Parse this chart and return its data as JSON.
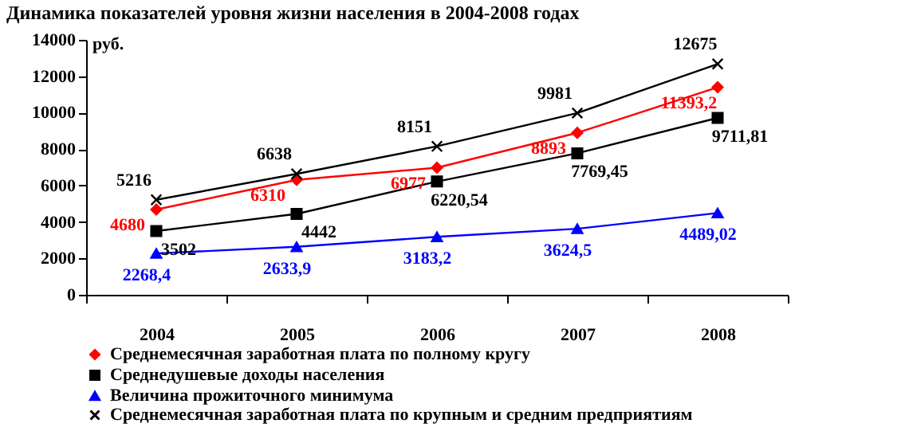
{
  "chart_data": {
    "type": "line",
    "title": "Динамика показателей уровня жизни населения в 2004-2008 годах",
    "ylabel": "руб.",
    "categories": [
      "2004",
      "2005",
      "2006",
      "2007",
      "2008"
    ],
    "series": [
      {
        "name": "Среднемесячная заработная плата по полному кругу",
        "color": "#ff0000",
        "marker": "diamond",
        "values": [
          4680,
          6310,
          6977,
          8893,
          11393.2
        ],
        "value_labels": [
          "4680",
          "6310",
          "6977",
          "8893",
          "11393,2"
        ]
      },
      {
        "name": "Среднедушевые доходы населения",
        "color": "#000000",
        "marker": "square",
        "values": [
          3502,
          4442,
          6220.54,
          7769.45,
          9711.81
        ],
        "value_labels": [
          "3502",
          "4442",
          "6220,54",
          "7769,45",
          "9711,81"
        ]
      },
      {
        "name": "Величина  прожиточного минимума",
        "color": "#0000ff",
        "marker": "triangle",
        "values": [
          2268.4,
          2633.9,
          3183.2,
          3624.5,
          4489.02
        ],
        "value_labels": [
          "2268,4",
          "2633,9",
          "3183,2",
          "3624,5",
          "4489,02"
        ]
      },
      {
        "name": "Среднемесячная заработная плата по крупным и средним предприятиям",
        "color": "#000000",
        "marker": "cross",
        "values": [
          5216,
          6638,
          8151,
          9981,
          12675
        ],
        "value_labels": [
          "5216",
          "6638",
          "8151",
          "9981",
          "12675"
        ]
      }
    ],
    "ylim": [
      0,
      14000
    ],
    "yticks": [
      0,
      2000,
      4000,
      6000,
      8000,
      10000,
      12000,
      14000
    ],
    "grid": false,
    "legend": "bottom",
    "line_style": "solid"
  }
}
